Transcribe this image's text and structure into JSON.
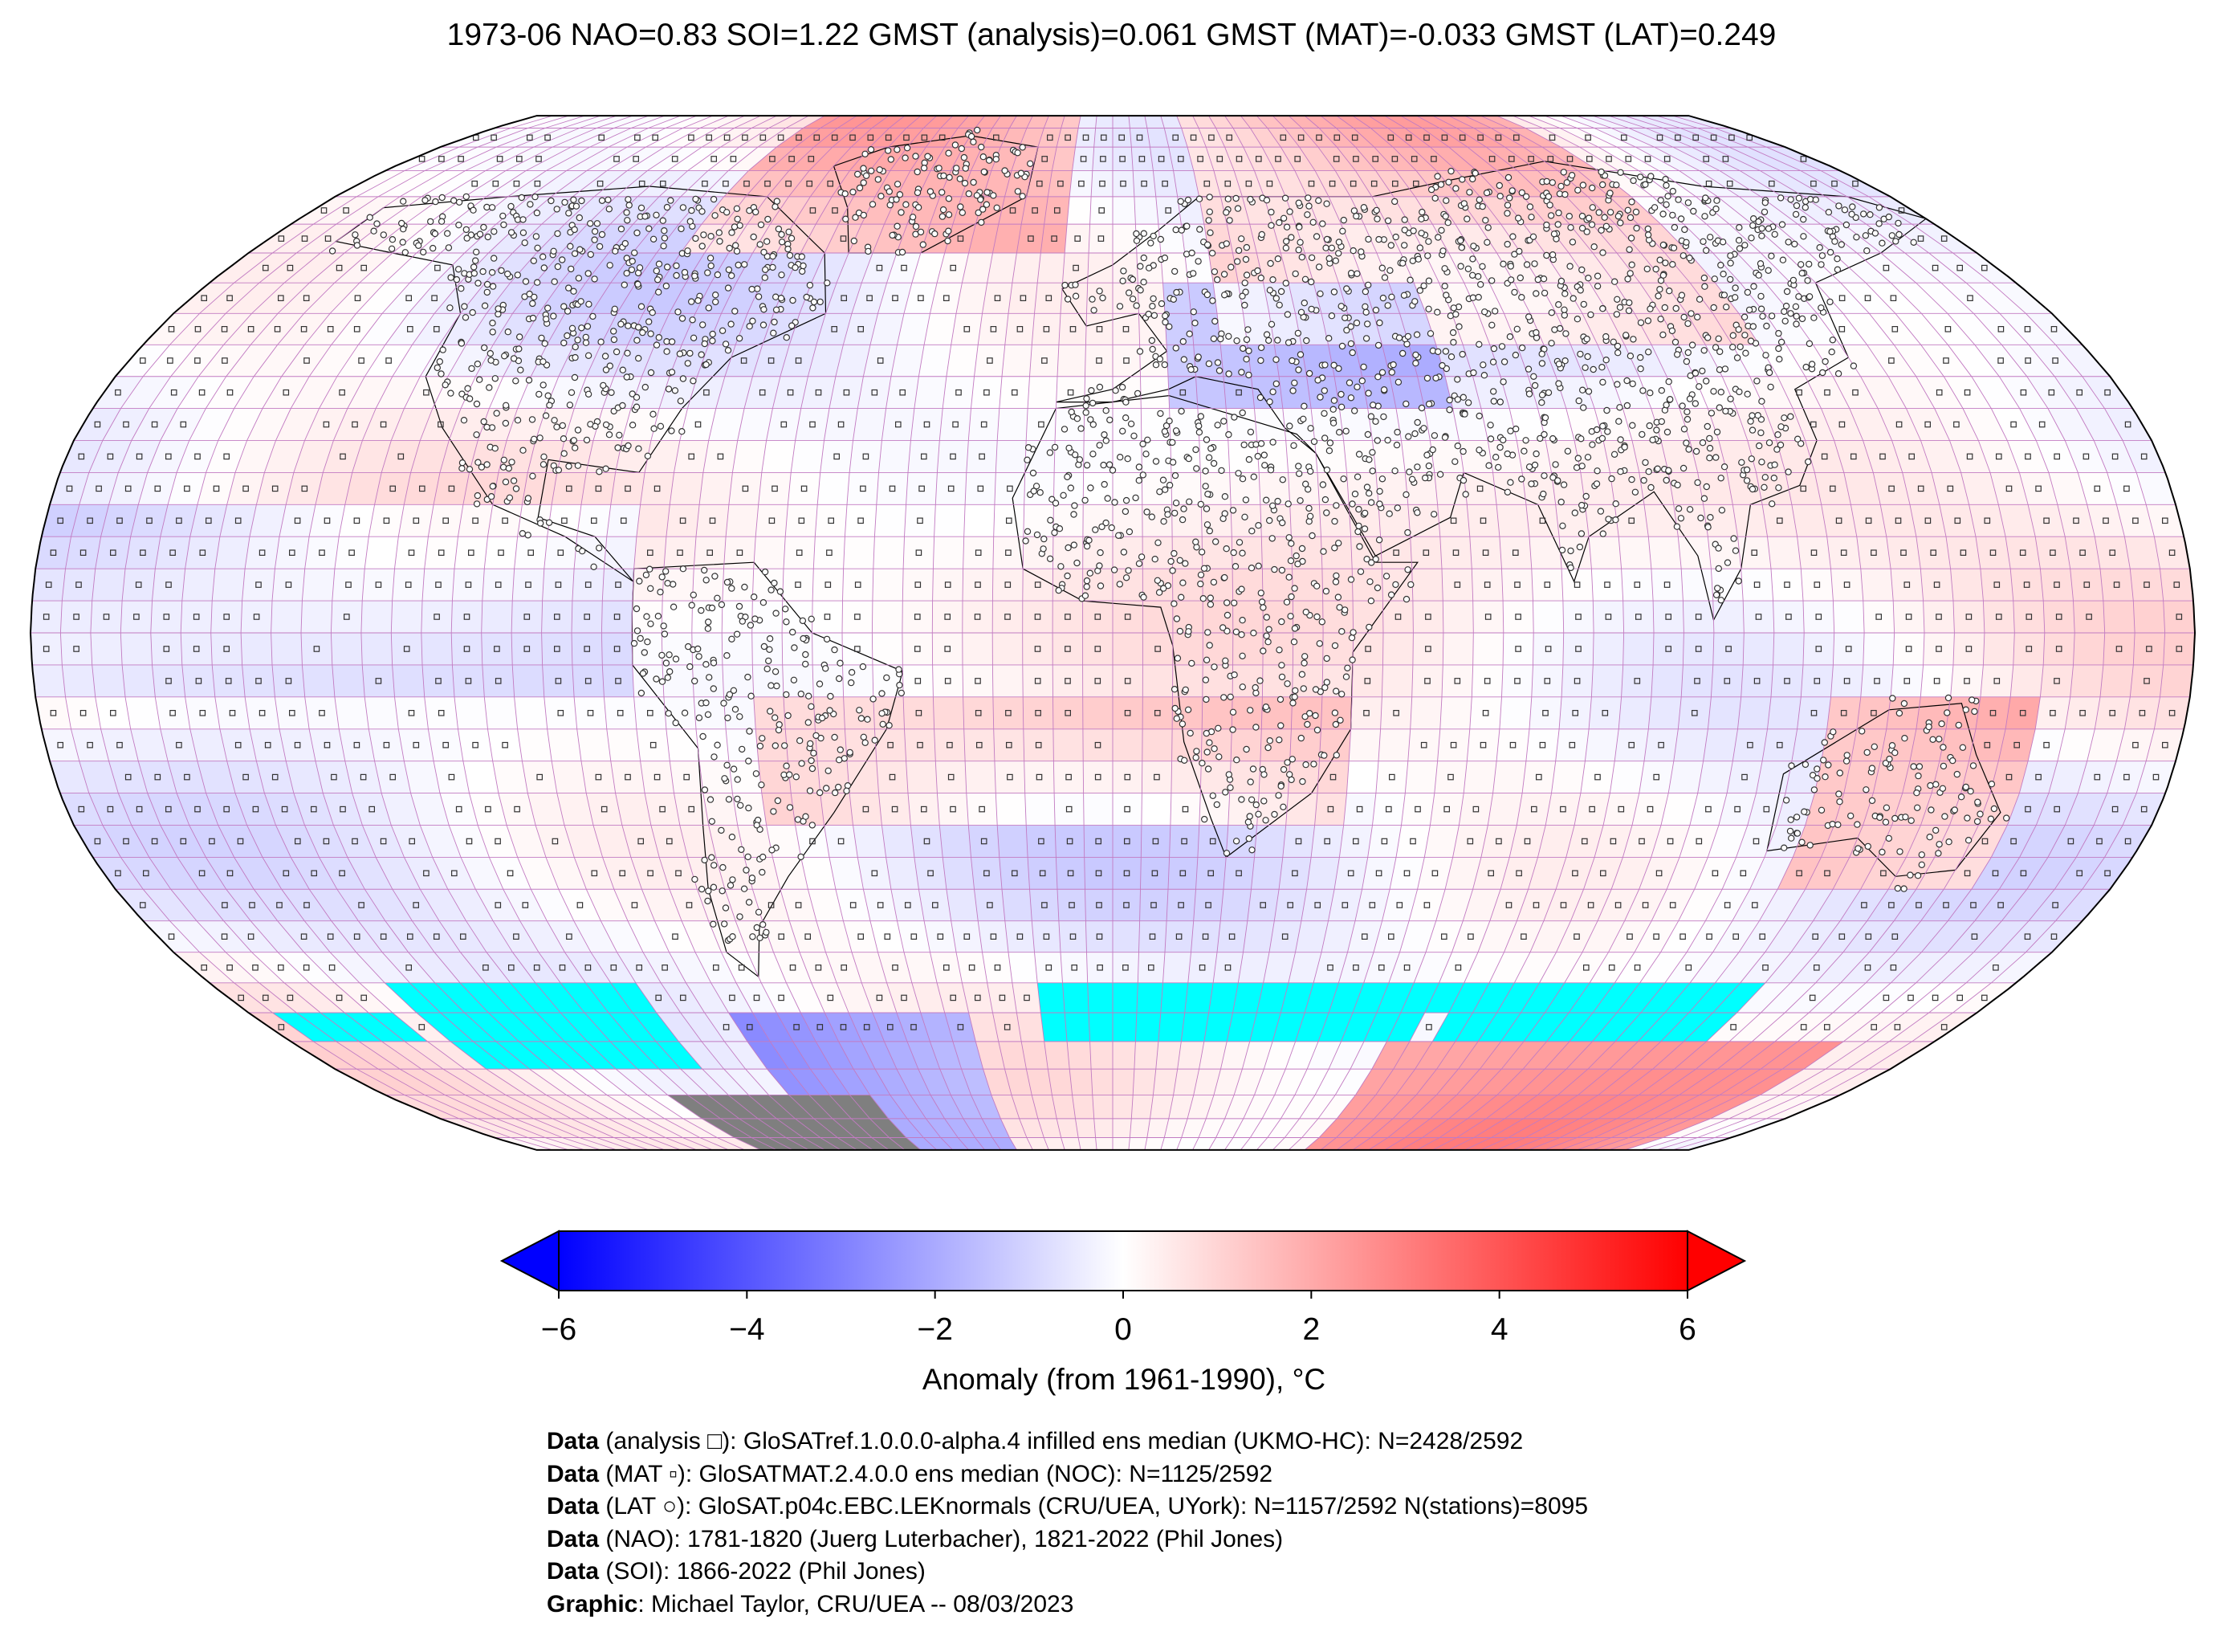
{
  "title": "1973-06 NAO=0.83 SOI=1.22 GMST (analysis)=0.061 GMST (MAT)=-0.033 GMST (LAT)=0.249",
  "colorbar": {
    "label": "Anomaly (from 1961-1990), °C",
    "range": [
      -6,
      6
    ],
    "ticks": [
      "−6",
      "−4",
      "−2",
      "0",
      "2",
      "4",
      "6"
    ],
    "tick_values": [
      -6,
      -4,
      -2,
      0,
      2,
      4,
      6
    ],
    "cold_color": "#0000ff",
    "neutral_color": "#ffffff",
    "warm_color": "#ff0000",
    "extend": "both"
  },
  "map": {
    "projection": "Robinson",
    "no_data_color": "#00ffff",
    "masked_color": "#7f7f7f",
    "gridline_color": "#c27bc2",
    "coastline_color": "#000000",
    "grid_resolution": "5° x 5°",
    "markers": {
      "analysis": "square",
      "MAT": "small square",
      "LAT": "circle"
    }
  },
  "credits": [
    {
      "bold": "Data",
      "text": " (analysis □): GloSATref.1.0.0.0-alpha.4 infilled ens median (UKMO-HC): N=2428/2592"
    },
    {
      "bold": "Data",
      "text": " (MAT ▫): GloSATMAT.2.4.0.0 ens median (NOC): N=1125/2592"
    },
    {
      "bold": "Data",
      "text": " (LAT ○): GloSAT.p04c.EBC.LEKnormals (CRU/UEA, UYork): N=1157/2592 N(stations)=8095"
    },
    {
      "bold": "Data",
      "text": " (NAO): 1781-1820 (Juerg Luterbacher), 1821-2022 (Phil Jones)"
    },
    {
      "bold": "Data",
      "text": " (SOI): 1866-2022 (Phil Jones)"
    },
    {
      "bold": "Graphic",
      "text": ": Michael Taylor, CRU/UEA -- 08/03/2023"
    }
  ]
}
